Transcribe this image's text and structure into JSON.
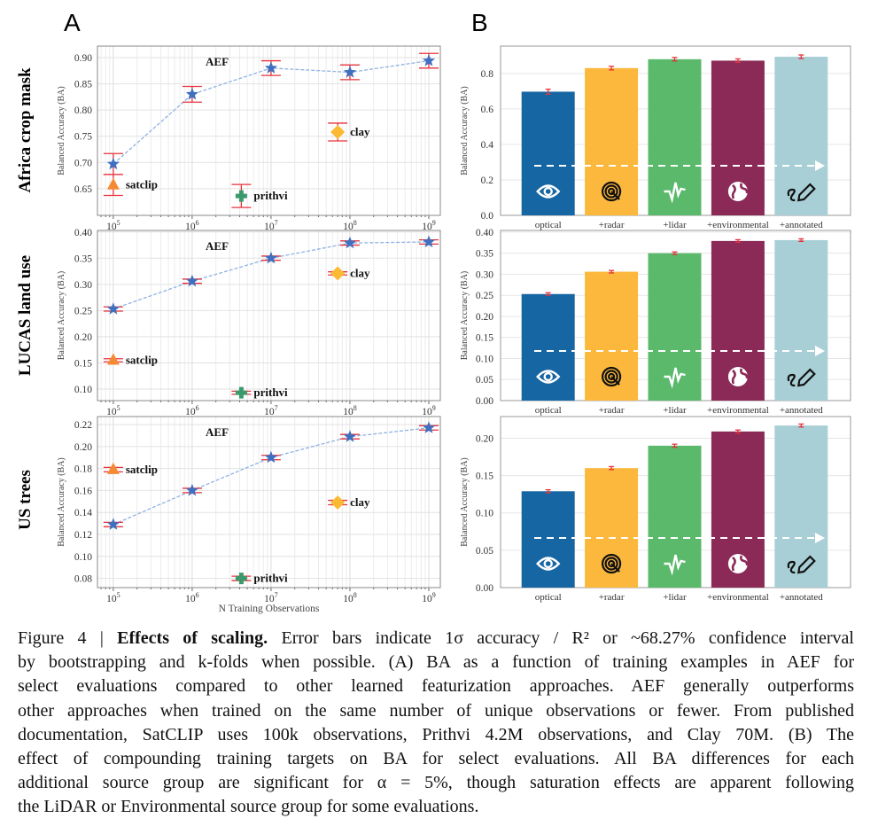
{
  "panel_letters": [
    "A",
    "B"
  ],
  "row_labels": [
    "Africa crop mask",
    "LUCAS land use",
    "US trees"
  ],
  "caption": {
    "figure_label": "Figure 4 | ",
    "title": "Effects of scaling.",
    "lines": [
      " Error bars indicate 1σ accuracy / R² or ~68.27% confidence interval",
      "by bootstrapping and k-folds when possible.  (A) BA as a function of training examples in AEF for",
      "select evaluations compared to other learned featurization approaches. AEF generally outperforms",
      "other approaches when trained on the same number of unique observations or fewer. From published",
      "documentation, SatCLIP uses 100k observations, Prithvi 4.2M observations, and Clay 70M. (B) The",
      "effect of compounding training targets on BA for select evaluations.  All BA differences for each",
      "additional source group are significant for α = 5%, though saturation effects are apparent following",
      "the LiDAR or Environmental source group for some evaluations."
    ]
  },
  "colors": {
    "aef": "#3f6fbf",
    "aef_line": "#8fb2e3",
    "satclip": "#f58a35",
    "prithvi": "#3a9a6e",
    "clay": "#fbb934",
    "error_bar": "#e8323c",
    "bars": [
      "#1666a3",
      "#fbb83d",
      "#5bb96b",
      "#8b2a57",
      "#a8cfd6"
    ]
  },
  "chart_data": [
    {
      "type": "scatter",
      "panel": "A",
      "row": "Africa crop mask",
      "xlabel": "",
      "ylabel": "Balanced Accuracy (BA)",
      "x_scale": "log",
      "xlim": [
        63000,
        1400000000
      ],
      "ylim": [
        0.599,
        0.922
      ],
      "grid": true,
      "xticks": [
        100000,
        1000000,
        10000000,
        100000000,
        1000000000
      ],
      "xtick_labels": [
        "10^5",
        "10^6",
        "10^7",
        "10^8",
        "10^9"
      ],
      "yticks": [
        "0.65",
        "0.70",
        "0.75",
        "0.80",
        "0.85",
        "0.90"
      ],
      "series": [
        {
          "name": "AEF",
          "marker": "star",
          "x": [
            100000,
            1000000,
            10000000,
            100000000,
            1000000000
          ],
          "y": [
            0.697,
            0.83,
            0.88,
            0.872,
            0.894
          ],
          "err": [
            0.02,
            0.015,
            0.014,
            0.014,
            0.014
          ],
          "line": "dashed"
        },
        {
          "name": "satclip",
          "marker": "triangle",
          "x": [
            100000
          ],
          "y": [
            0.657
          ],
          "err": [
            0.02
          ]
        },
        {
          "name": "prithvi",
          "marker": "plus",
          "x": [
            4200000
          ],
          "y": [
            0.636
          ],
          "err": [
            0.022
          ]
        },
        {
          "name": "clay",
          "marker": "diamond",
          "x": [
            70000000
          ],
          "y": [
            0.758
          ],
          "err": [
            0.017
          ]
        }
      ]
    },
    {
      "type": "scatter",
      "panel": "A",
      "row": "LUCAS land use",
      "xlabel": "",
      "ylabel": "Balanced Accuracy (BA)",
      "x_scale": "log",
      "xlim": [
        63000,
        1400000000
      ],
      "ylim": [
        0.078,
        0.403
      ],
      "grid": true,
      "xticks": [
        100000,
        1000000,
        10000000,
        100000000,
        1000000000
      ],
      "xtick_labels": [
        "10^5",
        "10^6",
        "10^7",
        "10^8",
        "10^9"
      ],
      "yticks": [
        "0.10",
        "0.15",
        "0.20",
        "0.25",
        "0.30",
        "0.35",
        "0.40"
      ],
      "series": [
        {
          "name": "AEF",
          "marker": "star",
          "x": [
            100000,
            1000000,
            10000000,
            100000000,
            1000000000
          ],
          "y": [
            0.253,
            0.306,
            0.35,
            0.379,
            0.381
          ],
          "err": [
            0.004,
            0.004,
            0.004,
            0.004,
            0.004
          ],
          "line": "dashed"
        },
        {
          "name": "satclip",
          "marker": "triangle",
          "x": [
            100000
          ],
          "y": [
            0.155
          ],
          "err": [
            0.003
          ]
        },
        {
          "name": "prithvi",
          "marker": "plus",
          "x": [
            4200000
          ],
          "y": [
            0.093
          ],
          "err": [
            0.003
          ]
        },
        {
          "name": "clay",
          "marker": "diamond",
          "x": [
            70000000
          ],
          "y": [
            0.321
          ],
          "err": [
            0.003
          ]
        }
      ]
    },
    {
      "type": "scatter",
      "panel": "A",
      "row": "US trees",
      "xlabel": "N Training Observations",
      "ylabel": "Balanced Accuracy (BA)",
      "x_scale": "log",
      "xlim": [
        63000,
        1400000000
      ],
      "ylim": [
        0.0716,
        0.2273
      ],
      "grid": true,
      "xticks": [
        100000,
        1000000,
        10000000,
        100000000,
        1000000000
      ],
      "xtick_labels": [
        "10^5",
        "10^6",
        "10^7",
        "10^8",
        "10^9"
      ],
      "yticks": [
        "0.08",
        "0.10",
        "0.12",
        "0.14",
        "0.16",
        "0.18",
        "0.20",
        "0.22"
      ],
      "series": [
        {
          "name": "AEF",
          "marker": "star",
          "x": [
            100000,
            1000000,
            10000000,
            100000000,
            1000000000
          ],
          "y": [
            0.129,
            0.16,
            0.19,
            0.209,
            0.217
          ],
          "err": [
            0.002,
            0.002,
            0.002,
            0.002,
            0.002
          ],
          "line": "dashed"
        },
        {
          "name": "satclip",
          "marker": "triangle",
          "x": [
            100000
          ],
          "y": [
            0.179
          ],
          "err": [
            0.002
          ]
        },
        {
          "name": "prithvi",
          "marker": "plus",
          "x": [
            4200000
          ],
          "y": [
            0.08
          ],
          "err": [
            0.002
          ]
        },
        {
          "name": "clay",
          "marker": "diamond",
          "x": [
            70000000
          ],
          "y": [
            0.149
          ],
          "err": [
            0.002
          ]
        }
      ]
    },
    {
      "type": "bar",
      "panel": "B",
      "row": "Africa crop mask",
      "ylabel": "Balanced Accuracy (BA)",
      "ylim": [
        0,
        0.954
      ],
      "grid": true,
      "categories": [
        "optical",
        "+radar",
        "+lidar",
        "+environmental",
        "+annotated"
      ],
      "icons": [
        "eye-icon",
        "radar-icon",
        "lidar-icon",
        "globe-icon",
        "pencil-icon"
      ],
      "values": [
        0.697,
        0.83,
        0.88,
        0.872,
        0.894
      ],
      "errors": [
        0.014,
        0.01,
        0.01,
        0.01,
        0.01
      ],
      "yticks": [
        "0.0",
        "0.2",
        "0.4",
        "0.6",
        "0.8"
      ]
    },
    {
      "type": "bar",
      "panel": "B",
      "row": "LUCAS land use",
      "ylabel": "Balanced Accuracy (BA)",
      "ylim": [
        0,
        0.404
      ],
      "grid": true,
      "categories": [
        "optical",
        "+radar",
        "+lidar",
        "+environmental",
        "+annotated"
      ],
      "icons": [
        "eye-icon",
        "radar-icon",
        "lidar-icon",
        "globe-icon",
        "pencil-icon"
      ],
      "values": [
        0.253,
        0.306,
        0.35,
        0.379,
        0.381
      ],
      "errors": [
        0.003,
        0.003,
        0.003,
        0.003,
        0.003
      ],
      "yticks": [
        "0.00",
        "0.05",
        "0.10",
        "0.15",
        "0.20",
        "0.25",
        "0.30",
        "0.35",
        "0.40"
      ]
    },
    {
      "type": "bar",
      "panel": "B",
      "row": "US trees",
      "ylabel": "Balanced Accuracy (BA)",
      "ylim": [
        0,
        0.229
      ],
      "grid": true,
      "categories": [
        "optical",
        "+radar",
        "+lidar",
        "+environmental",
        "+annotated"
      ],
      "icons": [
        "eye-icon",
        "radar-icon",
        "lidar-icon",
        "globe-icon",
        "pencil-icon"
      ],
      "values": [
        0.129,
        0.16,
        0.19,
        0.209,
        0.217
      ],
      "errors": [
        0.002,
        0.002,
        0.002,
        0.002,
        0.002
      ],
      "yticks": [
        "0.00",
        "0.05",
        "0.10",
        "0.15",
        "0.20"
      ]
    }
  ]
}
